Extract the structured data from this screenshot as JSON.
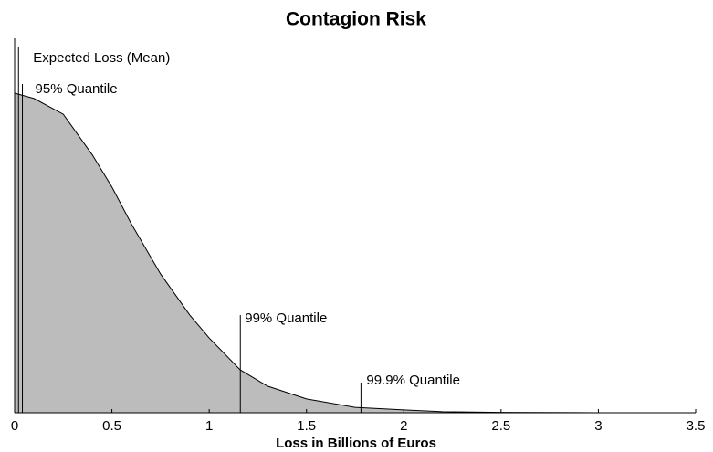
{
  "chart_data": {
    "type": "area",
    "title": "Contagion Risk",
    "xlabel": "Loss in Billions of Euros",
    "x": [
      0,
      0.1,
      0.25,
      0.4,
      0.5,
      0.6,
      0.75,
      0.9,
      1.0,
      1.16,
      1.3,
      1.5,
      1.75,
      2.0,
      2.2,
      2.5,
      3.0,
      3.5
    ],
    "values": [
      1.0,
      0.983,
      0.934,
      0.806,
      0.706,
      0.591,
      0.434,
      0.306,
      0.234,
      0.134,
      0.083,
      0.043,
      0.017,
      0.009,
      0.003,
      0.001,
      0,
      0
    ],
    "color": "#bcbcbc",
    "xlim": [
      0,
      3.5
    ],
    "xticks": [
      0,
      0.5,
      1,
      1.5,
      2,
      2.5,
      3,
      3.5
    ],
    "ylim": [
      0,
      1.2
    ],
    "annotations": [
      {
        "label": "Expected Loss (Mean)",
        "x": 0.02
      },
      {
        "label": "95% Quantile",
        "x": 0.04
      },
      {
        "label": "99% Quantile",
        "x": 1.16
      },
      {
        "label": "99.9% Quantile",
        "x": 1.78
      }
    ]
  }
}
